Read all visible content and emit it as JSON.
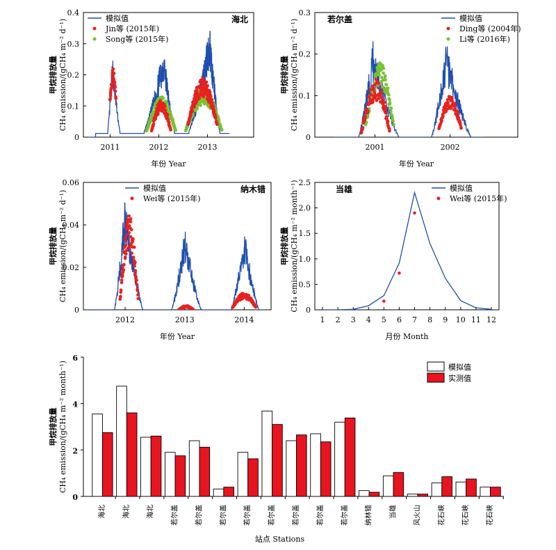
{
  "chart_data": [
    {
      "id": "p1",
      "type": "line",
      "site": "海北",
      "xlabel": "年份 Year",
      "ylabel_cn": "甲烷排放量",
      "ylabel_en": "CH₄ emission/(gCH₄ m⁻² d⁻¹)",
      "ylim": [
        0,
        0.4
      ],
      "yticks": [
        0,
        0.1,
        0.2,
        0.3,
        0.4
      ],
      "yticklabels": [
        "0",
        "0.1",
        "0.2",
        "0.3",
        "0.4"
      ],
      "xlim": [
        2010.45,
        2013.95
      ],
      "xticks": [
        2011,
        2012,
        2013
      ],
      "xticklabels": [
        "2011",
        "2012",
        "2013"
      ],
      "legend": [
        "模拟值",
        "Jin等 (2015年)",
        "Song等 (2015年)"
      ],
      "colors": [
        "#1f4fb0",
        "#e8211f",
        "#78c232"
      ],
      "model": {
        "seasons": [
          {
            "start": 2010.95,
            "peak": 2011.05,
            "end": 2011.2,
            "amp": 0.27,
            "base": 0.02
          },
          {
            "start": 2011.7,
            "peak": 2012.1,
            "end": 2012.32,
            "amp": 0.3,
            "base": 0.02
          },
          {
            "start": 2012.62,
            "peak": 2013.05,
            "end": 2013.25,
            "amp": 0.37,
            "base": 0.02
          }
        ],
        "xmin": 2010.55,
        "xmax": 2013.45
      },
      "obs_red": {
        "segments": [
          {
            "x0": 2011.0,
            "x1": 2011.12,
            "lo": 0.12,
            "hi": 0.22
          },
          {
            "x0": 2011.85,
            "x1": 2012.25,
            "lo": 0.02,
            "hi": 0.12
          },
          {
            "x0": 2012.6,
            "x1": 2013.2,
            "lo": 0.04,
            "hi": 0.19
          }
        ]
      },
      "obs_green": {
        "segments": [
          {
            "x0": 2011.75,
            "x1": 2012.35,
            "lo": 0.02,
            "hi": 0.13
          },
          {
            "x0": 2012.55,
            "x1": 2013.3,
            "lo": 0.02,
            "hi": 0.16
          }
        ]
      }
    },
    {
      "id": "p2",
      "type": "line",
      "site": "若尔盖",
      "xlabel": "年份 Year",
      "ylabel_cn": "甲烷排放量",
      "ylabel_en": "CH₄ emission/(gCH₄ m⁻² d⁻¹)",
      "ylim": [
        0,
        0.3
      ],
      "yticks": [
        0,
        0.1,
        0.2,
        0.3
      ],
      "yticklabels": [
        "0",
        "0.1",
        "0.2",
        "0.3"
      ],
      "xlim": [
        2000.2,
        2002.9
      ],
      "xticks": [
        2001,
        2002
      ],
      "xticklabels": [
        "2001",
        "2002"
      ],
      "legend": [
        "模拟值",
        "Ding等 (2004年)",
        "Li等 (2016年)"
      ],
      "colors": [
        "#1f4fb0",
        "#e8211f",
        "#78c232"
      ],
      "model": {
        "seasons": [
          {
            "start": 2000.78,
            "peak": 2000.98,
            "end": 2001.32,
            "amp": 0.24,
            "base": 0.0
          },
          {
            "start": 2001.75,
            "peak": 2001.95,
            "end": 2002.28,
            "amp": 0.23,
            "base": 0.0
          }
        ],
        "xmin": 2000.45,
        "xmax": 2002.45
      },
      "obs_red": {
        "segments": [
          {
            "x0": 2000.82,
            "x1": 2001.2,
            "lo": 0.01,
            "hi": 0.14
          },
          {
            "x0": 2001.85,
            "x1": 2002.15,
            "lo": 0.02,
            "hi": 0.1
          }
        ]
      },
      "obs_green": {
        "segments": [
          {
            "x0": 2000.88,
            "x1": 2001.25,
            "lo": 0.03,
            "hi": 0.18
          }
        ]
      }
    },
    {
      "id": "p3",
      "type": "line",
      "site": "纳木错",
      "xlabel": "年份 Year",
      "ylabel_cn": "甲烷排放量",
      "ylabel_en": "CH₄ emission/(gCH₄ m⁻² d⁻¹)",
      "ylim": [
        0,
        0.06
      ],
      "yticks": [
        0,
        0.02,
        0.04,
        0.06
      ],
      "yticklabels": [
        "0",
        "0.02",
        "0.04",
        "0.06"
      ],
      "xlim": [
        2011.3,
        2014.45
      ],
      "xticks": [
        2012,
        2013,
        2014
      ],
      "xticklabels": [
        "2012",
        "2013",
        "2014"
      ],
      "legend": [
        "模拟值",
        "Wei等 (2015年)"
      ],
      "colors": [
        "#1f4fb0",
        "#e8211f"
      ],
      "model": {
        "seasons": [
          {
            "start": 2011.82,
            "peak": 2012.0,
            "end": 2012.3,
            "amp": 0.054,
            "base": 0.0
          },
          {
            "start": 2012.78,
            "peak": 2013.0,
            "end": 2013.28,
            "amp": 0.039,
            "base": 0.0
          },
          {
            "start": 2013.78,
            "peak": 2014.0,
            "end": 2014.25,
            "amp": 0.038,
            "base": 0.0
          }
        ],
        "xmin": 2011.35,
        "xmax": 2014.35
      },
      "obs_red": {
        "segments": [
          {
            "x0": 2011.92,
            "x1": 2012.22,
            "lo": 0.005,
            "hi": 0.045
          },
          {
            "x0": 2012.9,
            "x1": 2013.15,
            "lo": 0.0,
            "hi": 0.002
          },
          {
            "x0": 2013.8,
            "x1": 2014.2,
            "lo": 0.001,
            "hi": 0.008
          }
        ]
      }
    },
    {
      "id": "p4",
      "type": "line",
      "site": "当雄",
      "xlabel": "月份 Month",
      "ylabel_cn": "甲烷排放量",
      "ylabel_en": "CH₄ emission/(gCH₄ m⁻² month⁻¹)",
      "ylim": [
        0,
        2.5
      ],
      "yticks": [
        0,
        0.5,
        1.0,
        1.5,
        2.0,
        2.5
      ],
      "yticklabels": [
        "0",
        "0.5",
        "1.0",
        "1.5",
        "2.0",
        "2.5"
      ],
      "xlim": [
        0.5,
        12.5
      ],
      "xticks": [
        1,
        2,
        3,
        4,
        5,
        6,
        7,
        8,
        9,
        10,
        11,
        12
      ],
      "xticklabels": [
        "1",
        "2",
        "3",
        "4",
        "5",
        "6",
        "7",
        "8",
        "9",
        "10",
        "11",
        "12"
      ],
      "legend": [
        "模拟值",
        "Wei等 (2015年)"
      ],
      "colors": [
        "#1f4fb0",
        "#e8211f"
      ],
      "model_points": {
        "x": [
          1,
          2,
          3,
          4,
          5,
          6,
          7,
          8,
          9,
          10,
          11,
          12
        ],
        "y": [
          0.0,
          0.0,
          0.01,
          0.08,
          0.28,
          0.92,
          2.3,
          1.3,
          0.62,
          0.18,
          0.04,
          0.01
        ]
      },
      "obs_points": {
        "x": [
          5,
          6,
          7
        ],
        "y": [
          0.17,
          0.72,
          1.9
        ]
      }
    },
    {
      "id": "p5",
      "type": "bar",
      "xlabel": "站点 Stations",
      "ylabel_cn": "甲烷排放量",
      "ylabel_en": "CH₄ emission/(gCH₄ m⁻² month⁻¹)",
      "ylim": [
        0,
        6
      ],
      "yticks": [
        0,
        2,
        4,
        6
      ],
      "yticklabels": [
        "0",
        "2",
        "4",
        "6"
      ],
      "categories": [
        "海北",
        "海北",
        "海北",
        "若尔盖",
        "若尔盖",
        "若尔盖",
        "若尔盖",
        "若尔盖",
        "若尔盖",
        "若尔盖",
        "若尔盖",
        "纳林错",
        "当雄",
        "风火山",
        "花石峡",
        "花石峡",
        "花石峡"
      ],
      "series": [
        {
          "name": "模拟值",
          "color": "#ffffff",
          "values": [
            3.55,
            4.75,
            2.55,
            1.9,
            2.4,
            0.32,
            1.9,
            3.68,
            2.4,
            2.7,
            3.2,
            0.25,
            0.88,
            0.1,
            0.58,
            0.62,
            0.4
          ]
        },
        {
          "name": "实测值",
          "color": "#e8141f",
          "values": [
            2.75,
            3.6,
            2.6,
            1.75,
            2.12,
            0.4,
            1.62,
            3.1,
            2.65,
            2.35,
            3.38,
            0.18,
            1.03,
            0.1,
            0.85,
            0.75,
            0.4
          ]
        }
      ]
    }
  ]
}
